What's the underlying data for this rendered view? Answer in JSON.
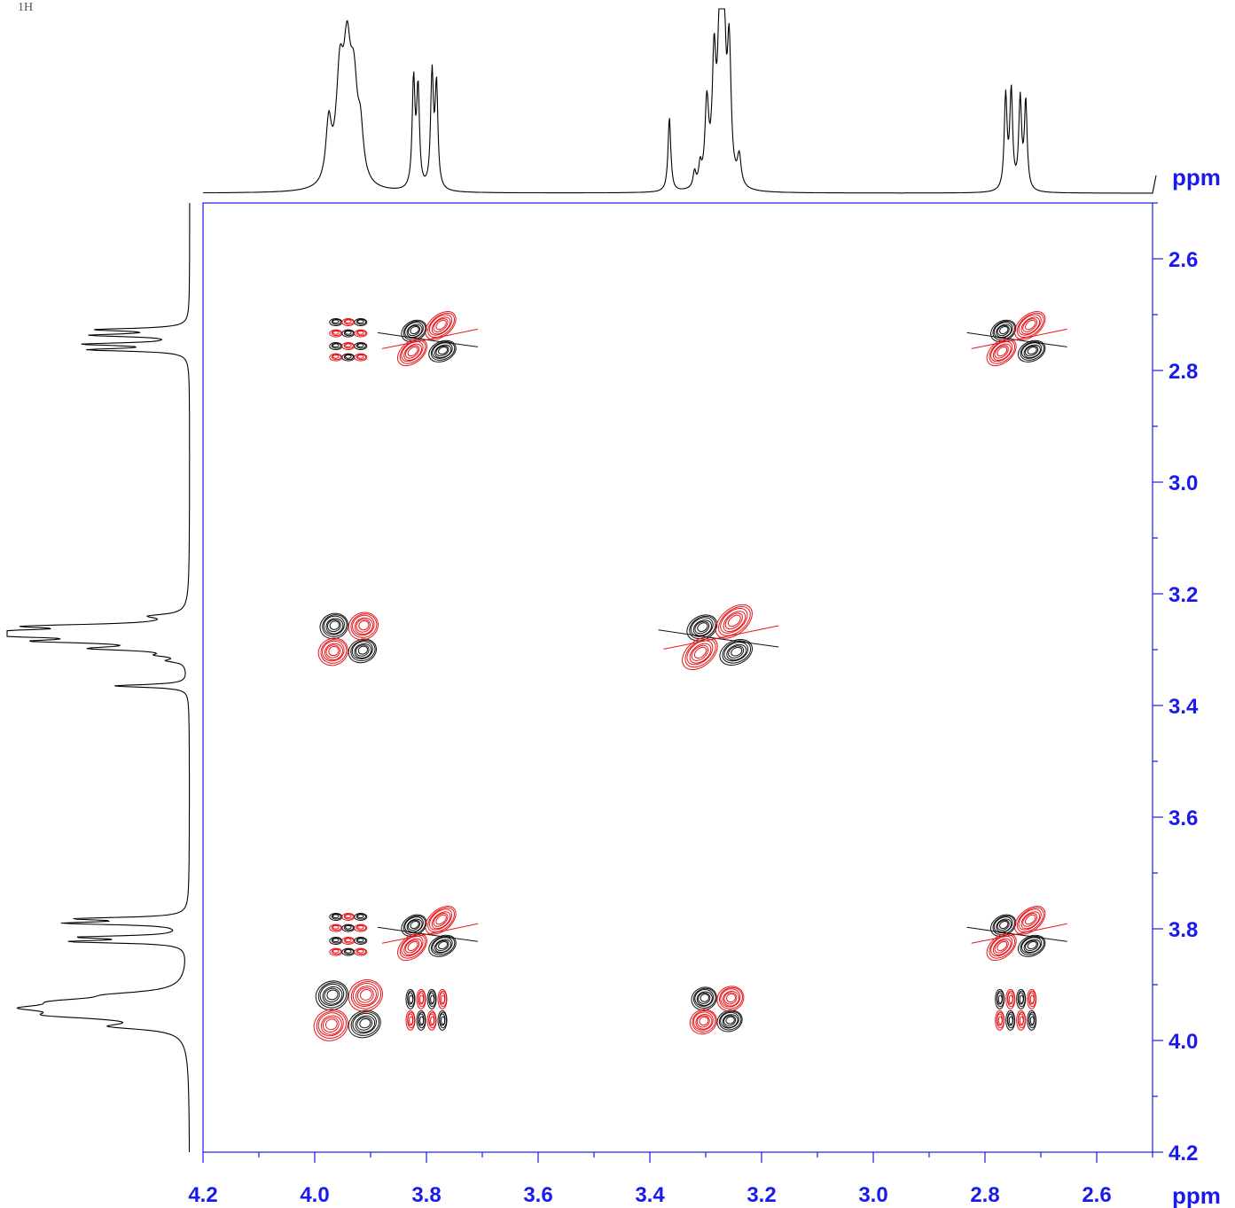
{
  "chart_data": {
    "type": "contour",
    "title": "",
    "corner_label": "1H",
    "x_axis": {
      "unit_label": "ppm",
      "range": [
        4.2,
        2.5
      ],
      "major_ticks": [
        4.2,
        4.0,
        3.8,
        3.6,
        3.4,
        3.2,
        3.0,
        2.8,
        2.6
      ],
      "tick_labels": [
        "4.2",
        "4.0",
        "3.8",
        "3.6",
        "3.4",
        "3.2",
        "3.0",
        "2.8",
        "2.6"
      ],
      "reversed": true
    },
    "y_axis": {
      "unit_label": "ppm",
      "range": [
        2.5,
        4.2
      ],
      "major_ticks": [
        2.6,
        2.8,
        3.0,
        3.2,
        3.4,
        3.6,
        3.8,
        4.0,
        4.2
      ],
      "tick_labels": [
        "2.6",
        "2.8",
        "3.0",
        "3.2",
        "3.4",
        "3.6",
        "3.8",
        "4.0",
        "4.2"
      ]
    },
    "projection_1d": {
      "peaks": [
        {
          "ppm": 3.975,
          "height": 0.3,
          "width": 0.006
        },
        {
          "ppm": 3.955,
          "height": 0.52,
          "width": 0.008
        },
        {
          "ppm": 3.942,
          "height": 0.58,
          "width": 0.008
        },
        {
          "ppm": 3.93,
          "height": 0.45,
          "width": 0.008
        },
        {
          "ppm": 3.918,
          "height": 0.22,
          "width": 0.006
        },
        {
          "ppm": 3.823,
          "height": 0.55,
          "width": 0.003
        },
        {
          "ppm": 3.815,
          "height": 0.5,
          "width": 0.003
        },
        {
          "ppm": 3.79,
          "height": 0.58,
          "width": 0.003
        },
        {
          "ppm": 3.782,
          "height": 0.52,
          "width": 0.003
        },
        {
          "ppm": 3.365,
          "height": 0.38,
          "width": 0.003
        },
        {
          "ppm": 3.32,
          "height": 0.08,
          "width": 0.003
        },
        {
          "ppm": 3.31,
          "height": 0.1,
          "width": 0.003
        },
        {
          "ppm": 3.298,
          "height": 0.42,
          "width": 0.004
        },
        {
          "ppm": 3.285,
          "height": 0.62,
          "width": 0.004
        },
        {
          "ppm": 3.275,
          "height": 0.75,
          "width": 0.004
        },
        {
          "ppm": 3.268,
          "height": 0.9,
          "width": 0.004
        },
        {
          "ppm": 3.258,
          "height": 0.68,
          "width": 0.004
        },
        {
          "ppm": 3.24,
          "height": 0.15,
          "width": 0.004
        },
        {
          "ppm": 2.763,
          "height": 0.48,
          "width": 0.003
        },
        {
          "ppm": 2.753,
          "height": 0.5,
          "width": 0.003
        },
        {
          "ppm": 2.737,
          "height": 0.46,
          "width": 0.003
        },
        {
          "ppm": 2.727,
          "height": 0.45,
          "width": 0.003
        }
      ]
    },
    "cross_peaks": [
      {
        "x": 3.8,
        "y": 2.745,
        "pattern": "diag",
        "scale": 1.0
      },
      {
        "x": 3.94,
        "y": 2.745,
        "pattern": "mult",
        "scale": 1.0
      },
      {
        "x": 2.745,
        "y": 2.745,
        "pattern": "diag",
        "scale": 1.0
      },
      {
        "x": 3.94,
        "y": 3.28,
        "pattern": "quad",
        "scale": 1.0
      },
      {
        "x": 3.28,
        "y": 3.28,
        "pattern": "diag",
        "scale": 1.2
      },
      {
        "x": 3.8,
        "y": 3.81,
        "pattern": "diag",
        "scale": 1.0
      },
      {
        "x": 3.94,
        "y": 3.81,
        "pattern": "mult",
        "scale": 1.0
      },
      {
        "x": 2.745,
        "y": 3.81,
        "pattern": "diag",
        "scale": 1.0
      },
      {
        "x": 3.94,
        "y": 3.945,
        "pattern": "quad",
        "scale": 1.15
      },
      {
        "x": 3.8,
        "y": 3.945,
        "pattern": "mult4",
        "scale": 1.0
      },
      {
        "x": 3.28,
        "y": 3.945,
        "pattern": "quad",
        "scale": 0.9
      },
      {
        "x": 2.745,
        "y": 3.945,
        "pattern": "mult4",
        "scale": 1.0
      }
    ],
    "colors": {
      "axis": "#1a1aee",
      "positive": "#111111",
      "negative": "#e8161b",
      "spectrum": "#000000"
    },
    "grid": false
  }
}
